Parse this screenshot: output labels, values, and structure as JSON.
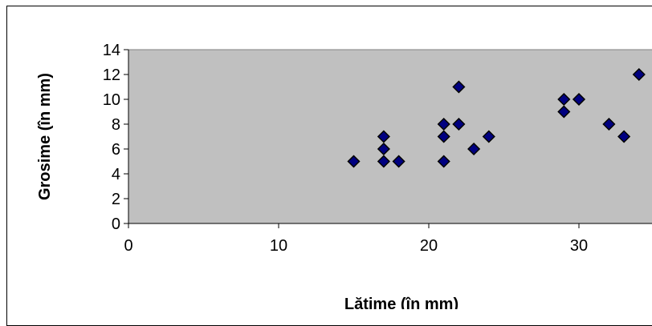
{
  "chart_data": {
    "type": "scatter",
    "xlabel": "Lățime (în mm)",
    "ylabel": "Grosime (în mm)",
    "xlim": [
      0,
      35
    ],
    "ylim": [
      0,
      14
    ],
    "xticks": [
      "0",
      "10",
      "20",
      "30"
    ],
    "yticks": [
      "0",
      "2",
      "4",
      "6",
      "8",
      "10",
      "12",
      "14"
    ],
    "plot_background": "#c0c0c0",
    "marker_color": "#000080",
    "grid": false,
    "legend": "none",
    "points": [
      {
        "x": 15,
        "y": 5
      },
      {
        "x": 17,
        "y": 5
      },
      {
        "x": 17,
        "y": 6
      },
      {
        "x": 17,
        "y": 7
      },
      {
        "x": 18,
        "y": 5
      },
      {
        "x": 21,
        "y": 5
      },
      {
        "x": 21,
        "y": 7
      },
      {
        "x": 21,
        "y": 8
      },
      {
        "x": 22,
        "y": 8
      },
      {
        "x": 22,
        "y": 11
      },
      {
        "x": 23,
        "y": 6
      },
      {
        "x": 24,
        "y": 7
      },
      {
        "x": 29,
        "y": 9
      },
      {
        "x": 29,
        "y": 10
      },
      {
        "x": 30,
        "y": 10
      },
      {
        "x": 32,
        "y": 8
      },
      {
        "x": 33,
        "y": 7
      },
      {
        "x": 34,
        "y": 12
      }
    ]
  }
}
